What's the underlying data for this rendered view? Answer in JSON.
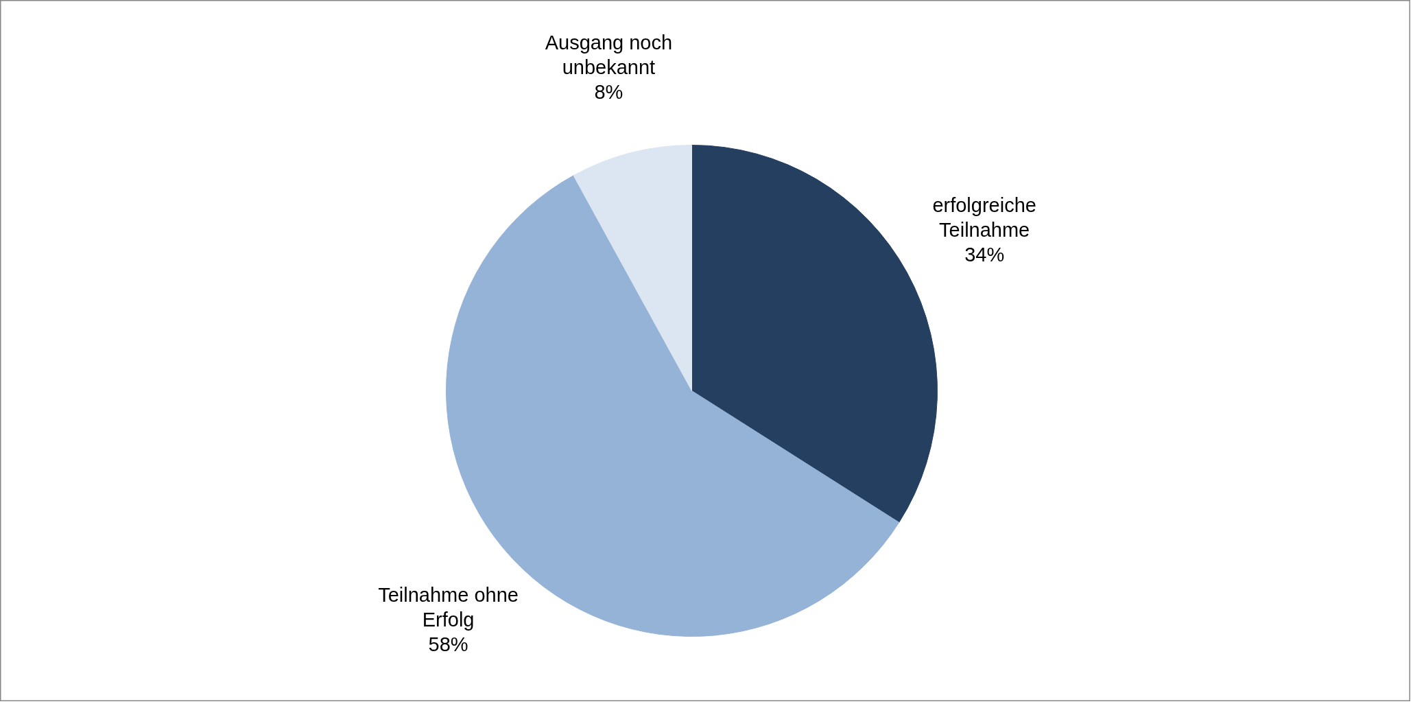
{
  "chart_data": {
    "type": "pie",
    "categories": [
      "erfolgreiche Teilnahme",
      "Teilnahme ohne Erfolg",
      "Ausgang noch unbekannt"
    ],
    "values": [
      34,
      58,
      8
    ],
    "colors": [
      "#253f60",
      "#95b3d7",
      "#dce6f2"
    ],
    "value_labels": [
      "34%",
      "58%",
      "8%"
    ]
  }
}
